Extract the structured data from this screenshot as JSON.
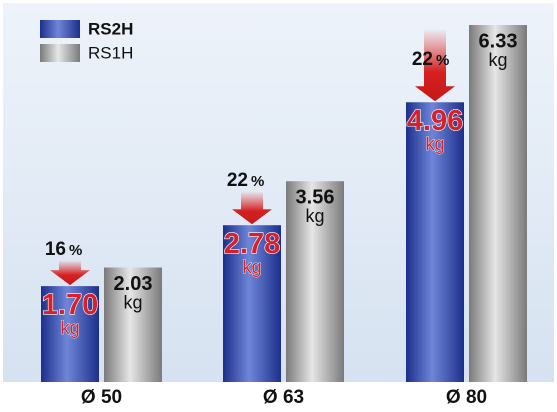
{
  "chart_data": {
    "type": "bar",
    "categories": [
      "Ø 50",
      "Ø 63",
      "Ø 80"
    ],
    "series": [
      {
        "name": "RS2H",
        "color": "#2d44a8",
        "values": [
          1.7,
          2.78,
          4.96
        ],
        "value_labels": [
          "1.70",
          "2.78",
          "4.96"
        ]
      },
      {
        "name": "RS1H",
        "color": "#9a9a9a",
        "values": [
          2.03,
          3.56,
          6.33
        ]
      }
    ],
    "unit": "kg",
    "reductions": [
      16,
      22,
      22
    ],
    "reduction_unit": "%"
  }
}
